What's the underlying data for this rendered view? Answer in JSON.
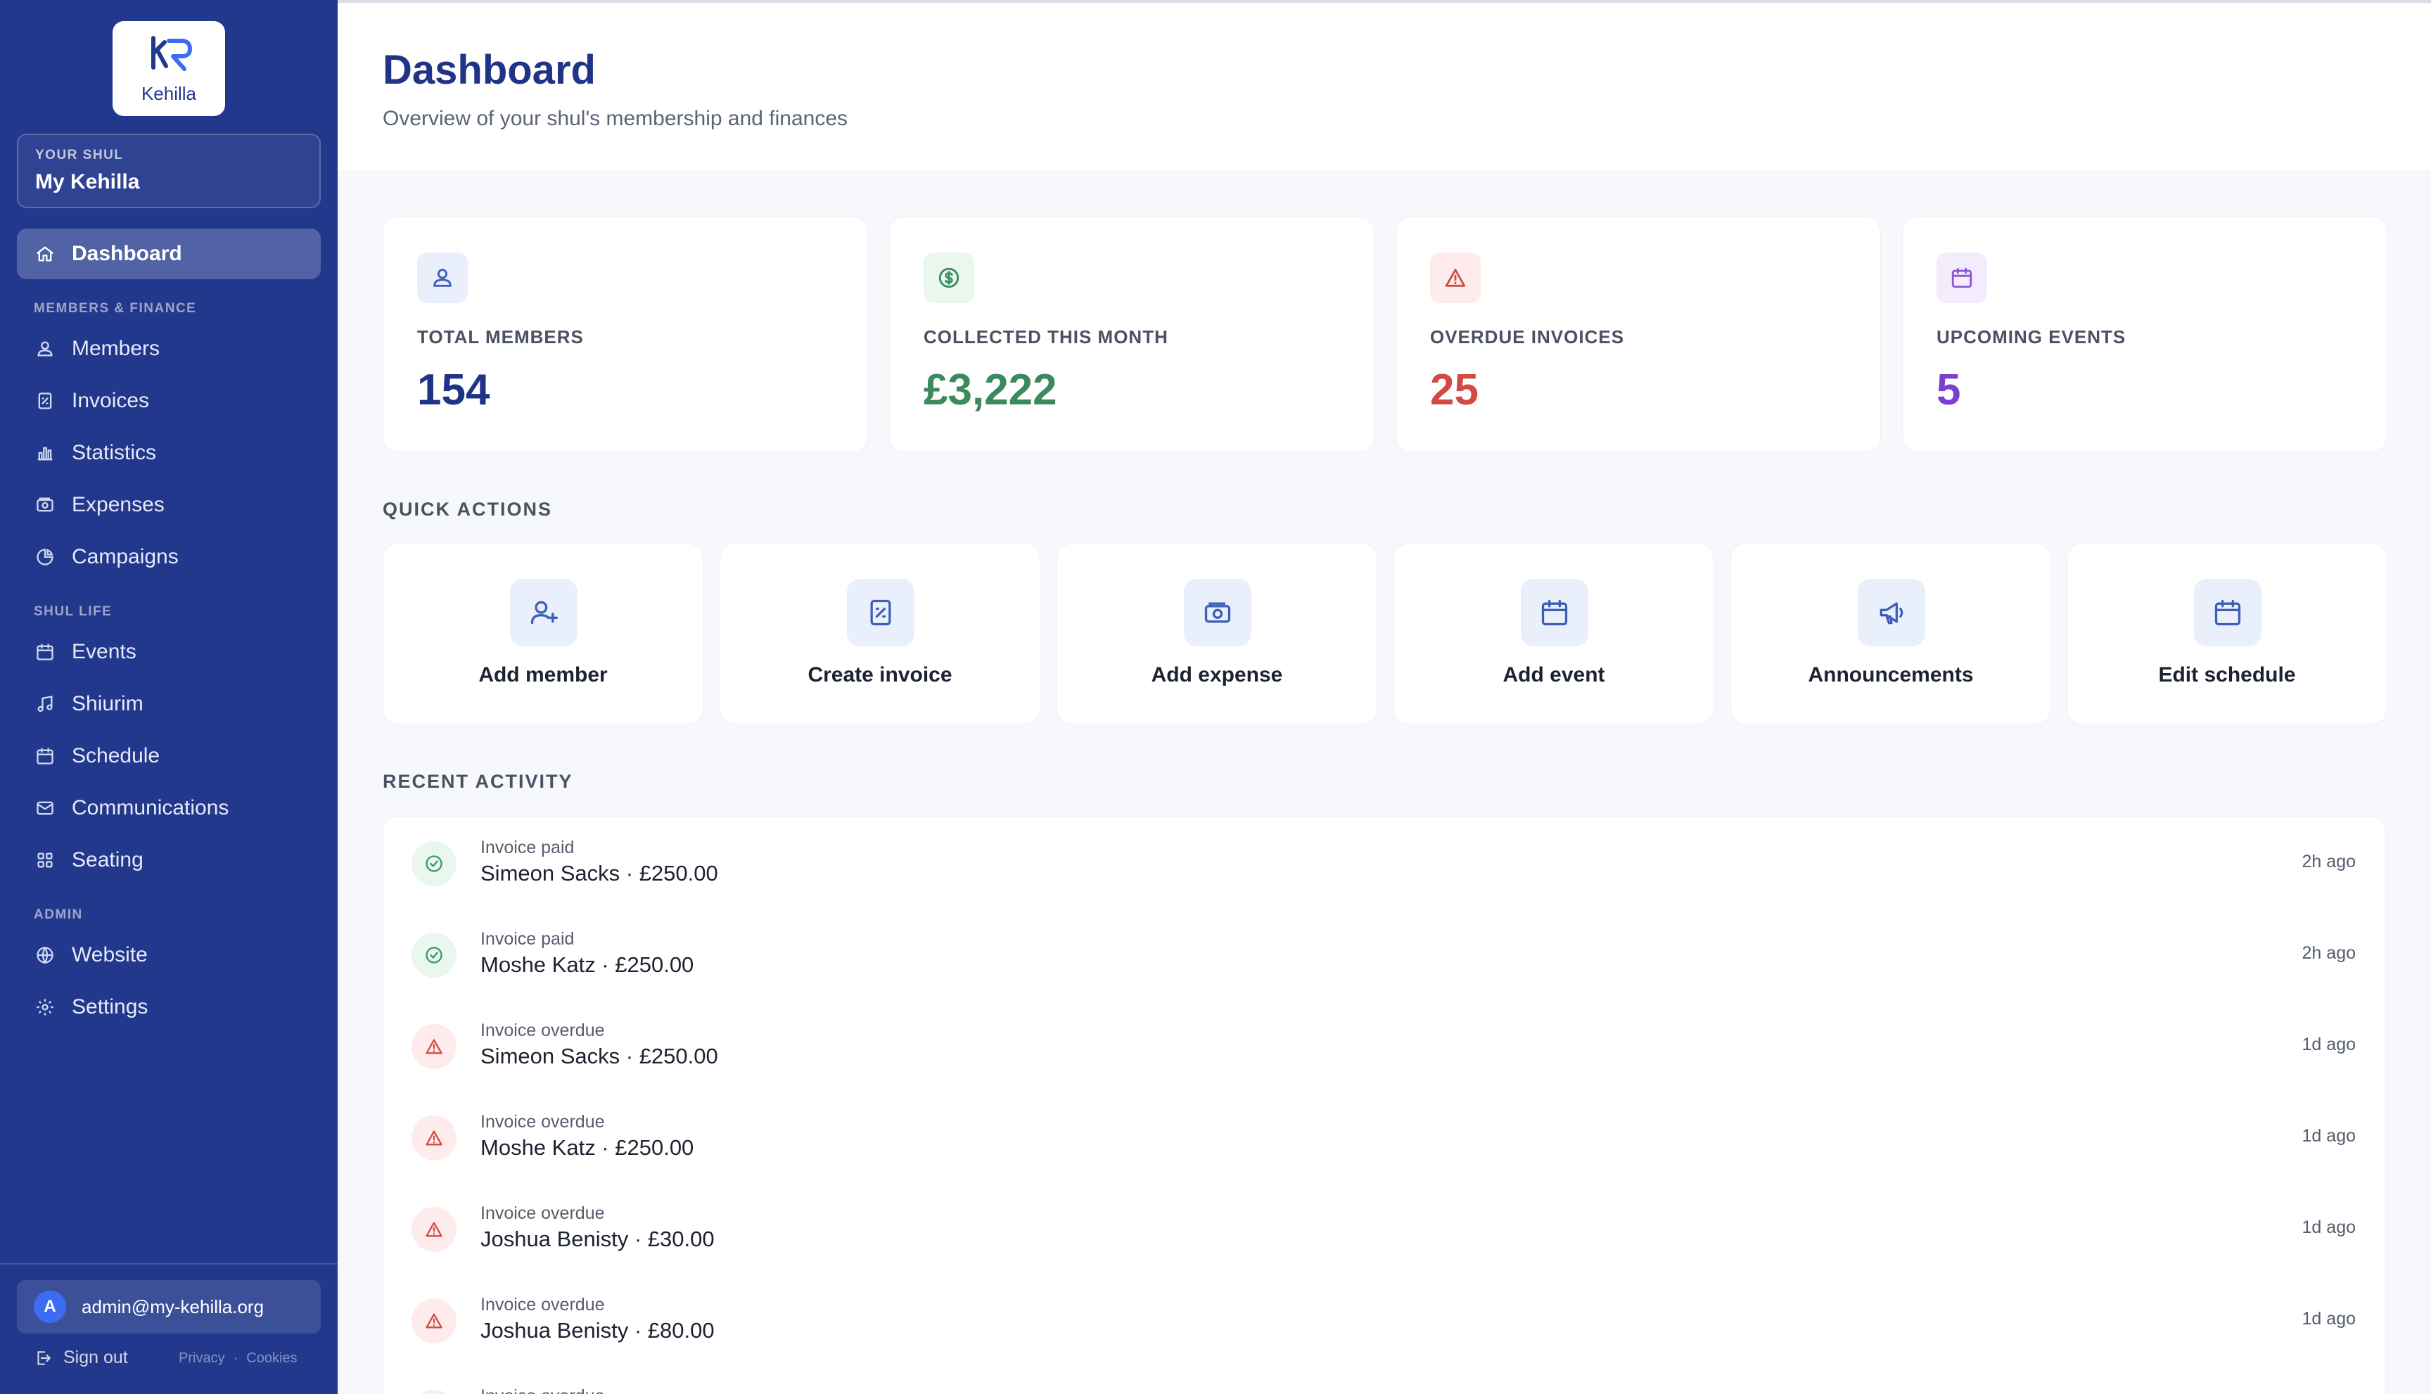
{
  "brand": {
    "name": "Kehilla",
    "logo_letters": "KR"
  },
  "shul": {
    "label": "YOUR SHUL",
    "name": "My Kehilla"
  },
  "nav": {
    "dashboard": "Dashboard",
    "sections": {
      "members_finance": "MEMBERS & FINANCE",
      "shul_life": "SHUL LIFE",
      "admin": "ADMIN"
    },
    "members_finance": [
      "Members",
      "Invoices",
      "Statistics",
      "Expenses",
      "Campaigns"
    ],
    "shul_life": [
      "Events",
      "Shiurim",
      "Schedule",
      "Communications",
      "Seating"
    ],
    "admin": [
      "Website",
      "Settings"
    ]
  },
  "user": {
    "initial": "A",
    "email": "admin@my-kehilla.org"
  },
  "footer": {
    "signout": "Sign out",
    "privacy": "Privacy",
    "separator": "·",
    "cookies": "Cookies"
  },
  "header": {
    "title": "Dashboard",
    "subtitle": "Overview of your shul's membership and finances"
  },
  "stats": [
    {
      "label": "TOTAL MEMBERS",
      "value": "154",
      "color": "#1f3486",
      "icon": "members-icon",
      "bg": "#eaf0fb"
    },
    {
      "label": "COLLECTED THIS MONTH",
      "value": "£3,222",
      "color": "#3a8a5c",
      "icon": "dollar-circle-icon",
      "bg": "#e9f7ee"
    },
    {
      "label": "OVERDUE INVOICES",
      "value": "25",
      "color": "#d24a43",
      "icon": "warning-icon",
      "bg": "#fdeceb"
    },
    {
      "label": "UPCOMING EVENTS",
      "value": "5",
      "color": "#7a3fd1",
      "icon": "calendar-icon",
      "bg": "#f3ecfc"
    }
  ],
  "quick_actions": {
    "title": "QUICK ACTIONS",
    "items": [
      {
        "label": "Add member",
        "icon": "user-plus-icon"
      },
      {
        "label": "Create invoice",
        "icon": "invoice-icon"
      },
      {
        "label": "Add expense",
        "icon": "wallet-icon"
      },
      {
        "label": "Add event",
        "icon": "calendar-icon"
      },
      {
        "label": "Announcements",
        "icon": "megaphone-icon"
      },
      {
        "label": "Edit schedule",
        "icon": "calendar-icon"
      }
    ]
  },
  "activity": {
    "title": "RECENT ACTIVITY",
    "items": [
      {
        "type": "Invoice paid",
        "detail": "Simeon Sacks · £250.00",
        "time": "2h ago",
        "status": "paid"
      },
      {
        "type": "Invoice paid",
        "detail": "Moshe Katz · £250.00",
        "time": "2h ago",
        "status": "paid"
      },
      {
        "type": "Invoice overdue",
        "detail": "Simeon Sacks · £250.00",
        "time": "1d ago",
        "status": "overdue"
      },
      {
        "type": "Invoice overdue",
        "detail": "Moshe Katz · £250.00",
        "time": "1d ago",
        "status": "overdue"
      },
      {
        "type": "Invoice overdue",
        "detail": "Joshua Benisty · £30.00",
        "time": "1d ago",
        "status": "overdue"
      },
      {
        "type": "Invoice overdue",
        "detail": "Joshua Benisty · £80.00",
        "time": "1d ago",
        "status": "overdue"
      },
      {
        "type": "Invoice overdue",
        "detail": "",
        "time": "",
        "status": "overdue"
      }
    ]
  }
}
